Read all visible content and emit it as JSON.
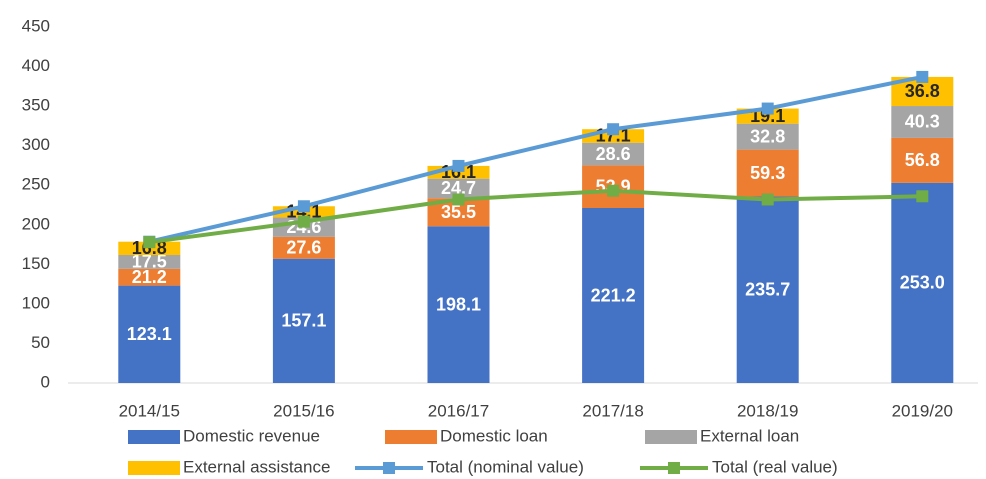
{
  "chart_data": {
    "type": "stacked_bar_line",
    "categories": [
      "2014/15",
      "2015/16",
      "2016/17",
      "2017/18",
      "2018/19",
      "2019/20"
    ],
    "ylim": [
      0,
      450
    ],
    "yticks": [
      0,
      50,
      100,
      150,
      200,
      250,
      300,
      350,
      400,
      450
    ],
    "series": [
      {
        "name": "Domestic revenue",
        "color": "#4472c4",
        "label_color": "#ffffff",
        "kind": "bar",
        "values": [
          123.1,
          157.1,
          198.1,
          221.2,
          235.7,
          253.0
        ],
        "value_labels": [
          "123.1",
          "157.1",
          "198.1",
          "221.2",
          "235.7",
          "253.0"
        ]
      },
      {
        "name": "Domestic loan",
        "color": "#ed7d31",
        "label_color": "#ffffff",
        "kind": "bar",
        "values": [
          21.2,
          27.6,
          35.5,
          53.9,
          59.3,
          56.8
        ]
      },
      {
        "name": "External loan",
        "color": "#a5a5a5",
        "label_color": "#ffffff",
        "kind": "bar",
        "values": [
          17.5,
          24.6,
          24.7,
          28.6,
          32.8,
          40.3
        ]
      },
      {
        "name": "External assistance",
        "color": "#ffc000",
        "label_color": "#262626",
        "kind": "bar",
        "values": [
          16.8,
          14.1,
          16.1,
          17.1,
          19.1,
          36.8
        ]
      },
      {
        "name": "Total (nominal value)",
        "color": "#5b9bd5",
        "kind": "line",
        "values": [
          178.6,
          223.4,
          274.4,
          320.8,
          346.9,
          386.9
        ]
      },
      {
        "name": "Total (real value)",
        "color": "#70ad47",
        "kind": "line",
        "values": [
          178,
          204,
          232,
          243,
          232,
          236
        ]
      }
    ]
  }
}
